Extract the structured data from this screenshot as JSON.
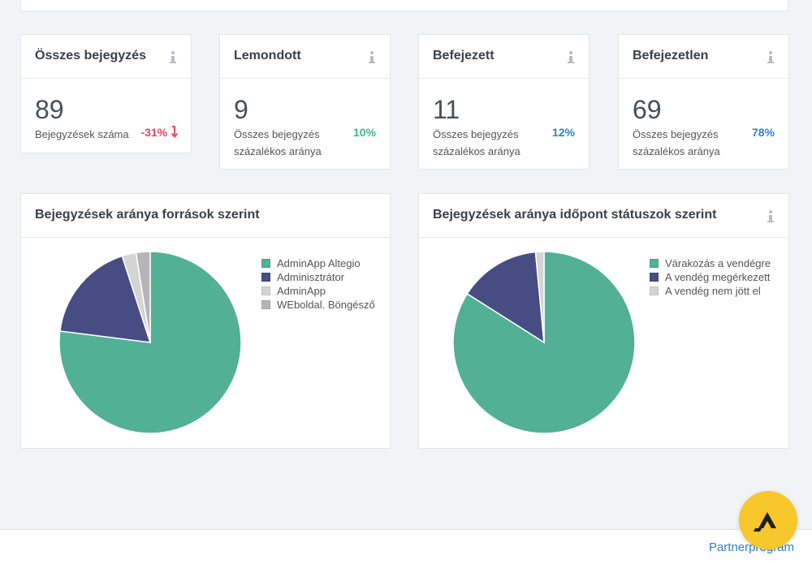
{
  "stats": [
    {
      "title": "Összes bejegyzés",
      "value": "89",
      "sub": "Bejegyzések száma",
      "pct": "-31%",
      "pct_color": "#e8455f",
      "trend": "down"
    },
    {
      "title": "Lemondott",
      "value": "9",
      "sub": "Összes bejegyzés százalékos aránya",
      "pct": "10%",
      "pct_color": "#3fb98a"
    },
    {
      "title": "Befejezett",
      "value": "11",
      "sub": "Összes bejegyzés százalékos aránya",
      "pct": "12%",
      "pct_color": "#2f82c9"
    },
    {
      "title": "Befejezetlen",
      "value": "69",
      "sub": "Összes bejegyzés százalékos aránya",
      "pct": "78%",
      "pct_color": "#2f82c9"
    }
  ],
  "charts": {
    "sources": {
      "title": "Bejegyzések aránya források szerint",
      "has_info_icon": false
    },
    "status": {
      "title": "Bejegyzések aránya időpont státuszok szerint",
      "has_info_icon": true
    }
  },
  "chart_data": [
    {
      "type": "pie",
      "title": "Bejegyzések aránya források szerint",
      "categories": [
        "AdminApp Altegio",
        "Adminisztrátor",
        "AdminApp",
        "WEboldal. Böngésző"
      ],
      "values": [
        77,
        18,
        2.5,
        2.5
      ],
      "colors": [
        "#52b094",
        "#474c82",
        "#d4d4d4",
        "#b5b5b5"
      ],
      "legend": "right"
    },
    {
      "type": "pie",
      "title": "Bejegyzések aránya időpont státuszok szerint",
      "categories": [
        "Várakozás a vendégre",
        "A vendég megérkezett",
        "A vendég nem jött el"
      ],
      "values": [
        84,
        14.5,
        1.5
      ],
      "colors": [
        "#52b094",
        "#474c82",
        "#d4d4d4"
      ],
      "legend": "right"
    }
  ],
  "footer": {
    "partner_link": "Partnerprogram"
  },
  "fab": {
    "icon": "altegio-logo-icon"
  }
}
